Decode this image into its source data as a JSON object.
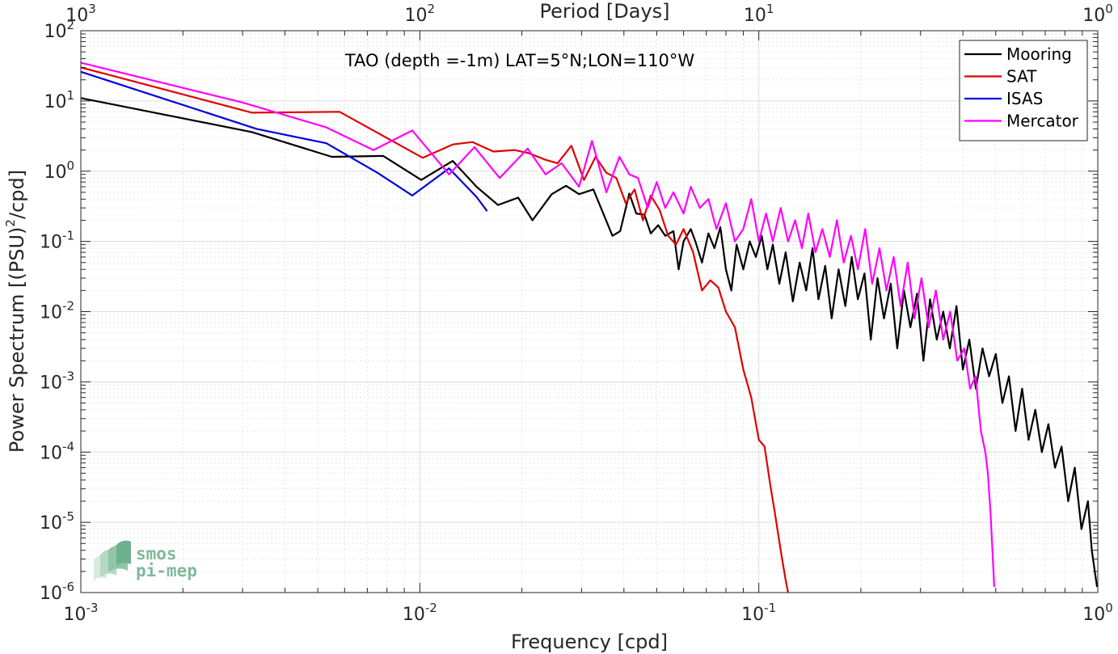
{
  "chart_data": {
    "type": "line",
    "title": "TAO (depth =-1m) LAT=5°N;LON=110°W",
    "xlabel": "Frequency [cpd]",
    "ylabel_main": "Power Spectrum [(PSU)",
    "ylabel_sup": "2",
    "ylabel_tail": "/cpd]",
    "top_xlabel": "Period [Days]",
    "xscale": "log",
    "yscale": "log",
    "xlim": [
      0.001,
      1
    ],
    "ylim": [
      1e-06,
      100
    ],
    "grid": true,
    "legend_position": "top-right",
    "x_ticks": [
      {
        "base": "10",
        "exp": "-3"
      },
      {
        "base": "10",
        "exp": "-2"
      },
      {
        "base": "10",
        "exp": "-1"
      },
      {
        "base": "10",
        "exp": "0"
      }
    ],
    "top_ticks": [
      {
        "base": "10",
        "exp": "3"
      },
      {
        "base": "10",
        "exp": "2"
      },
      {
        "base": "10",
        "exp": "1"
      },
      {
        "base": "10",
        "exp": "0"
      }
    ],
    "y_ticks": [
      {
        "base": "10",
        "exp": "2"
      },
      {
        "base": "10",
        "exp": "1"
      },
      {
        "base": "10",
        "exp": "0"
      },
      {
        "base": "10",
        "exp": "-1"
      },
      {
        "base": "10",
        "exp": "-2"
      },
      {
        "base": "10",
        "exp": "-3"
      },
      {
        "base": "10",
        "exp": "-4"
      },
      {
        "base": "10",
        "exp": "-5"
      },
      {
        "base": "10",
        "exp": "-6"
      }
    ],
    "series": [
      {
        "name": "Mooring",
        "color": "#000000",
        "points": [
          [
            0.001,
            11
          ],
          [
            0.0032,
            3.6
          ],
          [
            0.0055,
            1.6
          ],
          [
            0.0078,
            1.65
          ],
          [
            0.0101,
            0.75
          ],
          [
            0.0125,
            1.4
          ],
          [
            0.0147,
            0.6
          ],
          [
            0.017,
            0.33
          ],
          [
            0.0195,
            0.42
          ],
          [
            0.0215,
            0.2
          ],
          [
            0.0245,
            0.47
          ],
          [
            0.027,
            0.62
          ],
          [
            0.0295,
            0.47
          ],
          [
            0.0325,
            0.55
          ],
          [
            0.037,
            0.12
          ],
          [
            0.039,
            0.14
          ],
          [
            0.0415,
            0.48
          ],
          [
            0.0435,
            0.25
          ],
          [
            0.046,
            0.24
          ],
          [
            0.048,
            0.13
          ],
          [
            0.0505,
            0.17
          ],
          [
            0.053,
            0.12
          ],
          [
            0.056,
            0.14
          ],
          [
            0.058,
            0.04
          ],
          [
            0.06,
            0.1
          ],
          [
            0.063,
            0.15
          ],
          [
            0.065,
            0.1
          ],
          [
            0.068,
            0.05
          ],
          [
            0.071,
            0.13
          ],
          [
            0.074,
            0.08
          ],
          [
            0.077,
            0.16
          ],
          [
            0.08,
            0.04
          ],
          [
            0.083,
            0.02
          ],
          [
            0.086,
            0.09
          ],
          [
            0.09,
            0.04
          ],
          [
            0.094,
            0.1
          ],
          [
            0.098,
            0.06
          ],
          [
            0.102,
            0.12
          ],
          [
            0.106,
            0.04
          ],
          [
            0.11,
            0.09
          ],
          [
            0.115,
            0.025
          ],
          [
            0.12,
            0.07
          ],
          [
            0.126,
            0.014
          ],
          [
            0.132,
            0.05
          ],
          [
            0.138,
            0.02
          ],
          [
            0.144,
            0.08
          ],
          [
            0.15,
            0.015
          ],
          [
            0.157,
            0.045
          ],
          [
            0.164,
            0.008
          ],
          [
            0.172,
            0.04
          ],
          [
            0.18,
            0.012
          ],
          [
            0.188,
            0.06
          ],
          [
            0.196,
            0.015
          ],
          [
            0.205,
            0.035
          ],
          [
            0.214,
            0.004
          ],
          [
            0.224,
            0.03
          ],
          [
            0.234,
            0.008
          ],
          [
            0.245,
            0.025
          ],
          [
            0.256,
            0.003
          ],
          [
            0.268,
            0.02
          ],
          [
            0.28,
            0.006
          ],
          [
            0.293,
            0.018
          ],
          [
            0.306,
            0.002
          ],
          [
            0.32,
            0.015
          ],
          [
            0.335,
            0.004
          ],
          [
            0.35,
            0.01
          ],
          [
            0.366,
            0.003
          ],
          [
            0.383,
            0.012
          ],
          [
            0.4,
            0.0015
          ],
          [
            0.418,
            0.004
          ],
          [
            0.437,
            0.0008
          ],
          [
            0.457,
            0.003
          ],
          [
            0.478,
            0.0012
          ],
          [
            0.5,
            0.0025
          ],
          [
            0.523,
            0.0005
          ],
          [
            0.547,
            0.0012
          ],
          [
            0.572,
            0.0002
          ],
          [
            0.598,
            0.0008
          ],
          [
            0.625,
            0.00015
          ],
          [
            0.654,
            0.0004
          ],
          [
            0.684,
            0.0001
          ],
          [
            0.715,
            0.00025
          ],
          [
            0.748,
            6e-05
          ],
          [
            0.782,
            0.00012
          ],
          [
            0.818,
            2e-05
          ],
          [
            0.855,
            6e-05
          ],
          [
            0.895,
            8e-06
          ],
          [
            0.935,
            2e-05
          ],
          [
            0.96,
            4e-06
          ],
          [
            0.98,
            2e-06
          ],
          [
            0.995,
            1.2e-06
          ]
        ]
      },
      {
        "name": "SAT",
        "color": "#e00000",
        "points": [
          [
            0.001,
            30
          ],
          [
            0.0032,
            6.8
          ],
          [
            0.0058,
            7.0
          ],
          [
            0.0102,
            1.55
          ],
          [
            0.0125,
            2.4
          ],
          [
            0.0143,
            2.6
          ],
          [
            0.0165,
            1.9
          ],
          [
            0.019,
            2.0
          ],
          [
            0.021,
            1.8
          ],
          [
            0.0235,
            1.45
          ],
          [
            0.0255,
            1.3
          ],
          [
            0.028,
            2.3
          ],
          [
            0.0305,
            0.75
          ],
          [
            0.033,
            1.6
          ],
          [
            0.0355,
            0.95
          ],
          [
            0.038,
            0.8
          ],
          [
            0.0405,
            0.35
          ],
          [
            0.043,
            0.55
          ],
          [
            0.0455,
            0.2
          ],
          [
            0.048,
            0.45
          ],
          [
            0.051,
            0.28
          ],
          [
            0.054,
            0.12
          ],
          [
            0.057,
            0.09
          ],
          [
            0.06,
            0.15
          ],
          [
            0.064,
            0.07
          ],
          [
            0.068,
            0.02
          ],
          [
            0.072,
            0.028
          ],
          [
            0.076,
            0.022
          ],
          [
            0.08,
            0.01
          ],
          [
            0.085,
            0.006
          ],
          [
            0.09,
            0.0015
          ],
          [
            0.095,
            0.0006
          ],
          [
            0.1,
            0.00015
          ],
          [
            0.104,
            0.00012
          ],
          [
            0.108,
            3.5e-05
          ],
          [
            0.112,
            1.2e-05
          ],
          [
            0.116,
            4e-06
          ],
          [
            0.12,
            1.5e-06
          ],
          [
            0.122,
            1e-06
          ]
        ]
      },
      {
        "name": "ISAS",
        "color": "#0000dd",
        "points": [
          [
            0.001,
            26
          ],
          [
            0.0033,
            4.0
          ],
          [
            0.0053,
            2.5
          ],
          [
            0.0075,
            0.95
          ],
          [
            0.0095,
            0.45
          ],
          [
            0.0122,
            1.1
          ],
          [
            0.0147,
            0.43
          ],
          [
            0.0158,
            0.27
          ]
        ]
      },
      {
        "name": "Mercator",
        "color": "#ff00ff",
        "points": [
          [
            0.001,
            35
          ],
          [
            0.003,
            9.5
          ],
          [
            0.0053,
            4.2
          ],
          [
            0.0073,
            2.0
          ],
          [
            0.0095,
            3.8
          ],
          [
            0.0122,
            0.9
          ],
          [
            0.0145,
            2.2
          ],
          [
            0.0172,
            0.8
          ],
          [
            0.0208,
            2.1
          ],
          [
            0.0235,
            0.9
          ],
          [
            0.0262,
            1.3
          ],
          [
            0.0295,
            0.6
          ],
          [
            0.0322,
            2.7
          ],
          [
            0.0355,
            0.5
          ],
          [
            0.0388,
            1.6
          ],
          [
            0.0415,
            0.9
          ],
          [
            0.044,
            0.8
          ],
          [
            0.047,
            0.3
          ],
          [
            0.05,
            0.7
          ],
          [
            0.053,
            0.3
          ],
          [
            0.056,
            0.5
          ],
          [
            0.06,
            0.25
          ],
          [
            0.063,
            0.6
          ],
          [
            0.067,
            0.3
          ],
          [
            0.071,
            0.4
          ],
          [
            0.075,
            0.15
          ],
          [
            0.08,
            0.35
          ],
          [
            0.085,
            0.1
          ],
          [
            0.09,
            0.15
          ],
          [
            0.095,
            0.4
          ],
          [
            0.1,
            0.1
          ],
          [
            0.105,
            0.25
          ],
          [
            0.11,
            0.1
          ],
          [
            0.116,
            0.3
          ],
          [
            0.122,
            0.1
          ],
          [
            0.128,
            0.2
          ],
          [
            0.134,
            0.08
          ],
          [
            0.14,
            0.25
          ],
          [
            0.147,
            0.07
          ],
          [
            0.154,
            0.15
          ],
          [
            0.162,
            0.06
          ],
          [
            0.17,
            0.2
          ],
          [
            0.178,
            0.05
          ],
          [
            0.187,
            0.12
          ],
          [
            0.196,
            0.04
          ],
          [
            0.206,
            0.15
          ],
          [
            0.216,
            0.025
          ],
          [
            0.227,
            0.08
          ],
          [
            0.238,
            0.02
          ],
          [
            0.25,
            0.06
          ],
          [
            0.262,
            0.012
          ],
          [
            0.275,
            0.05
          ],
          [
            0.288,
            0.008
          ],
          [
            0.302,
            0.03
          ],
          [
            0.317,
            0.006
          ],
          [
            0.333,
            0.02
          ],
          [
            0.35,
            0.004
          ],
          [
            0.367,
            0.01
          ],
          [
            0.385,
            0.002
          ],
          [
            0.404,
            0.003
          ],
          [
            0.42,
            0.0008
          ],
          [
            0.436,
            0.0012
          ],
          [
            0.452,
            0.0002
          ],
          [
            0.466,
            0.0001
          ],
          [
            0.474,
            5e-05
          ],
          [
            0.482,
            1.5e-05
          ],
          [
            0.489,
            4e-06
          ],
          [
            0.495,
            1.2e-06
          ]
        ]
      }
    ]
  },
  "logo": {
    "line1": "smos",
    "line2": "pi-mep"
  }
}
